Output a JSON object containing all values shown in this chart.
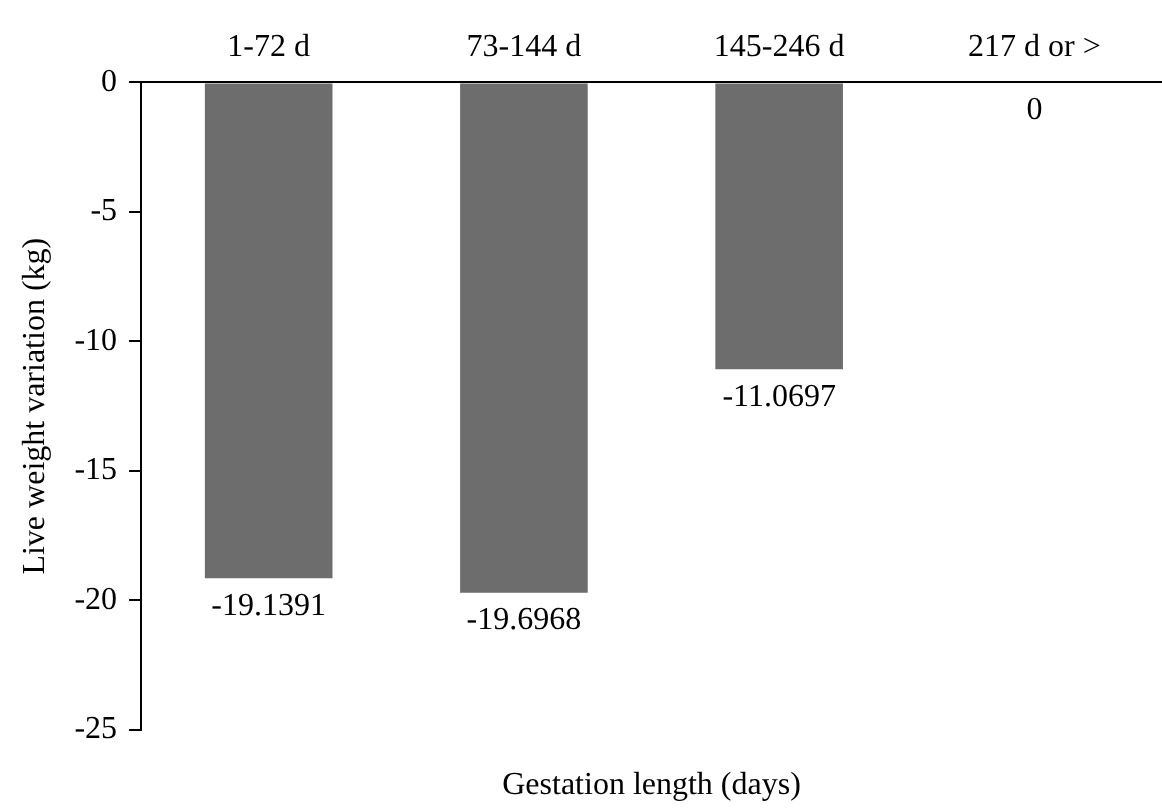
{
  "chart_data": {
    "type": "bar",
    "xlabel": "Gestation length (days)",
    "ylabel": "Live weight variation (kg)",
    "categories": [
      "1-72 d",
      "73-144 d",
      "145-246 d",
      "217 d or >"
    ],
    "values": [
      -19.1391,
      -19.6968,
      -11.0697,
      0
    ],
    "color": "#6d6d6d",
    "ylim": [
      -25,
      0
    ],
    "yticks": [
      -25,
      -20,
      -15,
      -10,
      -5,
      0
    ],
    "grid": false,
    "legend": false,
    "data_labels": true
  }
}
